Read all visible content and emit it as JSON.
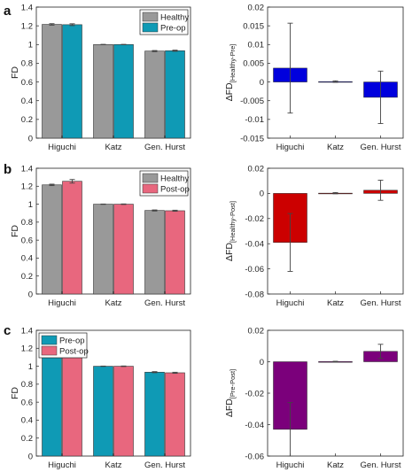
{
  "panels": [
    {
      "letter": "a",
      "left": {
        "type": "bar",
        "categories": [
          "Higuchi",
          "Katz",
          "Gen. Hurst"
        ],
        "ylabel": "FD",
        "ylim": [
          0,
          1.4
        ],
        "yticks": [
          "0",
          "0.2",
          "0.4",
          "0.6",
          "0.8",
          "1",
          "1.2",
          "1.4"
        ],
        "legend_position": "top-right",
        "series": [
          {
            "name": "Healthy",
            "color": "#999999",
            "values": [
              1.215,
              1.0,
              0.93
            ],
            "errors": [
              0.008,
              0.002,
              0.006
            ]
          },
          {
            "name": "Pre-op",
            "color": "#0F9AB5",
            "values": [
              1.212,
              1.0,
              0.934
            ],
            "errors": [
              0.01,
              0.002,
              0.006
            ]
          }
        ]
      },
      "right": {
        "type": "bar",
        "categories": [
          "Higuchi",
          "Katz",
          "Gen. Hurst"
        ],
        "ylabel_main": "ΔFD",
        "ylabel_sub": "[Healthy-Pre]",
        "ylim": [
          -0.015,
          0.02
        ],
        "yticks": [
          "-0.015",
          "-0.01",
          "-0.005",
          "0",
          "0.005",
          "0.01",
          "0.015",
          "0.02"
        ],
        "color": "#0000DD",
        "values": [
          0.0037,
          0.0001,
          -0.0041
        ],
        "errors": [
          0.012,
          0.0002,
          0.007
        ]
      }
    },
    {
      "letter": "b",
      "left": {
        "type": "bar",
        "categories": [
          "Higuchi",
          "Katz",
          "Gen. Hurst"
        ],
        "ylabel": "FD",
        "ylim": [
          0,
          1.4
        ],
        "yticks": [
          "0",
          "0.2",
          "0.4",
          "0.6",
          "0.8",
          "1",
          "1.2",
          "1.4"
        ],
        "legend_position": "top-right",
        "series": [
          {
            "name": "Healthy",
            "color": "#999999",
            "values": [
              1.215,
              1.0,
              0.93
            ],
            "errors": [
              0.008,
              0.002,
              0.006
            ]
          },
          {
            "name": "Post-op",
            "color": "#E8677E",
            "values": [
              1.255,
              1.0,
              0.927
            ],
            "errors": [
              0.02,
              0.003,
              0.006
            ]
          }
        ]
      },
      "right": {
        "type": "bar",
        "categories": [
          "Higuchi",
          "Katz",
          "Gen. Hurst"
        ],
        "ylabel_main": "ΔFD",
        "ylabel_sub": "[Healthy-Post]",
        "ylim": [
          -0.08,
          0.02
        ],
        "yticks": [
          "-0.08",
          "-0.06",
          "-0.04",
          "-0.02",
          "0",
          "0.02"
        ],
        "color": "#CC0000",
        "values": [
          -0.039,
          0.0002,
          0.0025
        ],
        "errors": [
          0.023,
          0.0005,
          0.008
        ]
      }
    },
    {
      "letter": "c",
      "left": {
        "type": "bar",
        "categories": [
          "Higuchi",
          "Katz",
          "Gen. Hurst"
        ],
        "ylabel": "FD",
        "ylim": [
          0,
          1.4
        ],
        "yticks": [
          "0",
          "0.2",
          "0.4",
          "0.6",
          "0.8",
          "1",
          "1.2",
          "1.4"
        ],
        "legend_position": "top-left",
        "series": [
          {
            "name": "Pre-op",
            "color": "#0F9AB5",
            "values": [
              1.212,
              1.0,
              0.934
            ],
            "errors": [
              0.01,
              0.002,
              0.006
            ]
          },
          {
            "name": "Post-op",
            "color": "#E8677E",
            "values": [
              1.255,
              1.0,
              0.927
            ],
            "errors": [
              0.02,
              0.003,
              0.006
            ]
          }
        ]
      },
      "right": {
        "type": "bar",
        "categories": [
          "Higuchi",
          "Katz",
          "Gen. Hurst"
        ],
        "ylabel_main": "ΔFD",
        "ylabel_sub": "[Pre-Post]",
        "ylim": [
          -0.06,
          0.02
        ],
        "yticks": [
          "-0.06",
          "-0.04",
          "-0.02",
          "0",
          "0.02"
        ],
        "color": "#7B007B",
        "values": [
          -0.043,
          0.0001,
          0.0066
        ],
        "errors": [
          0.017,
          0.0002,
          0.0045
        ]
      }
    }
  ]
}
